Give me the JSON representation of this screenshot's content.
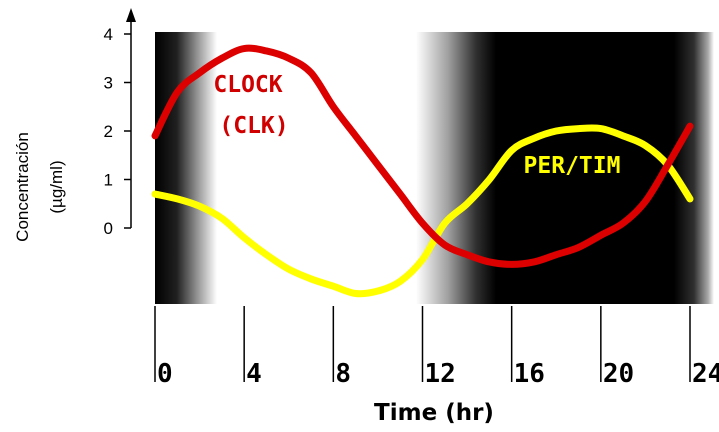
{
  "chart_data": {
    "type": "line",
    "xlabel": "Time (hr)",
    "ylabel_line1": "Concentración",
    "ylabel_line2": "(µg/ml)",
    "xlim": [
      0,
      24
    ],
    "ylim": [
      -1.5,
      4
    ],
    "x_ticks": [
      "0",
      "4",
      "8",
      "12",
      "16",
      "20",
      "24"
    ],
    "y_ticks": [
      "4",
      "3",
      "2",
      "1",
      "0"
    ],
    "series": [
      {
        "name": "CLOCK (CLK)",
        "color": "#dd0000",
        "x": [
          0,
          1,
          2,
          3,
          4,
          5,
          6,
          7,
          8,
          9,
          10,
          11,
          12,
          13,
          14,
          15,
          16,
          17,
          18,
          19,
          20,
          21,
          22,
          23,
          24
        ],
        "y": [
          1.9,
          2.8,
          3.2,
          3.5,
          3.7,
          3.65,
          3.5,
          3.2,
          2.5,
          1.9,
          1.3,
          0.7,
          0.1,
          -0.35,
          -0.55,
          -0.7,
          -0.75,
          -0.7,
          -0.55,
          -0.4,
          -0.15,
          0.1,
          0.55,
          1.3,
          2.1
        ]
      },
      {
        "name": "PER/TIM",
        "color": "#ffff00",
        "x": [
          0,
          1,
          2,
          3,
          4,
          5,
          6,
          7,
          8,
          9,
          10,
          11,
          12,
          13,
          14,
          15,
          16,
          17,
          18,
          19,
          20,
          21,
          22,
          23,
          24
        ],
        "y": [
          0.7,
          0.6,
          0.45,
          0.2,
          -0.2,
          -0.55,
          -0.85,
          -1.05,
          -1.2,
          -1.35,
          -1.3,
          -1.1,
          -0.65,
          0.1,
          0.5,
          1.0,
          1.6,
          1.85,
          2.0,
          2.05,
          2.05,
          1.9,
          1.7,
          1.3,
          0.6
        ]
      }
    ],
    "annotations": {
      "clock_line1": "CLOCK",
      "clock_line2": "(CLK)",
      "pertim": "PER/TIM"
    },
    "shading": "light/dark cycle: white 3.5–12.5 hr, dark 12.5–24 hr with gradients at transitions"
  }
}
